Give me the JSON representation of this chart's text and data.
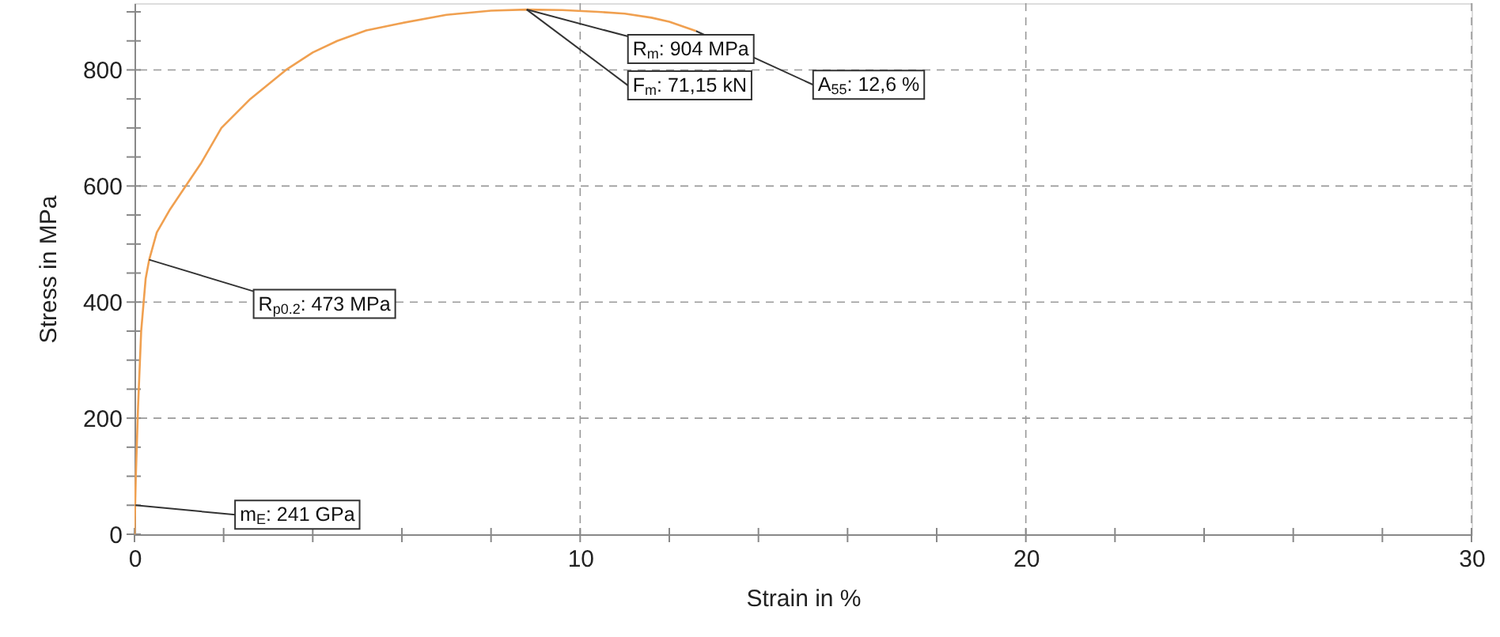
{
  "chart_data": {
    "type": "line",
    "xlabel": "Strain in %",
    "ylabel": "Stress in MPa",
    "x": [
      0,
      0.03,
      0.08,
      0.15,
      0.25,
      0.33,
      0.5,
      0.8,
      1.15,
      1.5,
      1.95,
      2.6,
      3.4,
      4.0,
      4.55,
      5.2,
      5.95,
      7.0,
      8.0,
      8.8,
      9.6,
      10.4,
      11.0,
      11.6,
      12.0,
      12.6
    ],
    "series": [
      {
        "color": "#f0a050",
        "values": [
          0,
          100,
          220,
          350,
          440,
          473,
          520,
          560,
          600,
          640,
          700,
          750,
          800,
          830,
          850,
          868,
          880,
          895,
          902,
          904,
          903,
          900,
          897,
          890,
          883,
          867
        ]
      }
    ],
    "xlim": [
      0,
      30
    ],
    "ylim": [
      0,
      915
    ],
    "xticks": [
      0,
      {
        "value": 2,
        "label": null
      },
      {
        "value": 4,
        "label": null
      },
      {
        "value": 6,
        "label": null
      },
      {
        "value": 8,
        "label": null
      },
      10,
      {
        "value": 12,
        "label": null
      },
      {
        "value": 14,
        "label": null
      },
      {
        "value": 16,
        "label": null
      },
      {
        "value": 18,
        "label": null
      },
      20,
      {
        "value": 22,
        "label": null
      },
      {
        "value": 24,
        "label": null
      },
      {
        "value": 26,
        "label": null
      },
      {
        "value": 28,
        "label": null
      },
      30
    ],
    "yticks": [
      0,
      {
        "value": 50,
        "label": null
      },
      {
        "value": 100,
        "label": null
      },
      {
        "value": 150,
        "label": null
      },
      200,
      {
        "value": 250,
        "label": null
      },
      {
        "value": 300,
        "label": null
      },
      {
        "value": 350,
        "label": null
      },
      400,
      {
        "value": 450,
        "label": null
      },
      {
        "value": 500,
        "label": null
      },
      {
        "value": 550,
        "label": null
      },
      600,
      {
        "value": 650,
        "label": null
      },
      {
        "value": 700,
        "label": null
      },
      {
        "value": 750,
        "label": null
      },
      800,
      {
        "value": 850,
        "label": null
      },
      {
        "value": 900,
        "label": null
      }
    ],
    "grid": true,
    "marker": "none",
    "annotations": [
      {
        "text": "R$_{m}$: 904 MPa",
        "x": 8.8,
        "y": 904
      },
      {
        "text": "F$_{m}$: 71,15 kN",
        "x": 8.8,
        "y": 904
      },
      {
        "text": "A$_{55}$: 12,6 %",
        "x": 12.6,
        "y": 867
      },
      {
        "text": "R$_{p0.2}$: 473 MPa",
        "x": 0.33,
        "y": 473
      },
      {
        "text": "m$_{E}$: 241 GPa",
        "x": 0.02,
        "y": 50
      }
    ]
  }
}
